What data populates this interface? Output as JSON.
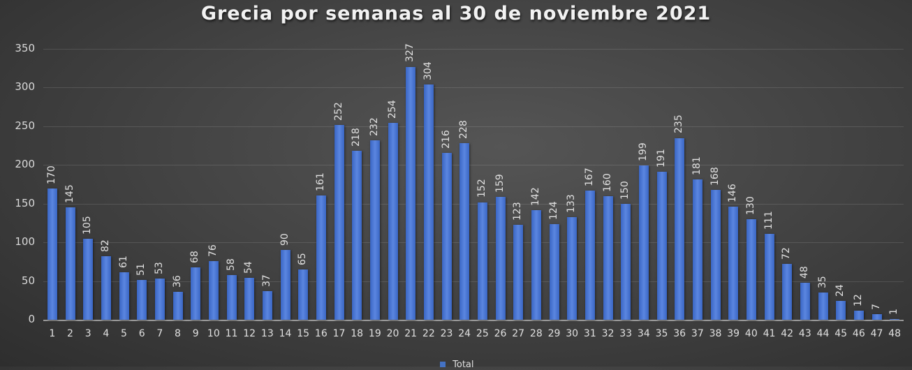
{
  "chart_data": {
    "type": "bar",
    "title": "Grecia por semanas al 30 de noviembre 2021",
    "xlabel": "",
    "ylabel": "",
    "ylim": [
      0,
      350
    ],
    "yticks": [
      0,
      50,
      100,
      150,
      200,
      250,
      300,
      350
    ],
    "grid": true,
    "legend_position": "bottom",
    "categories": [
      "1",
      "2",
      "3",
      "4",
      "5",
      "6",
      "7",
      "8",
      "9",
      "10",
      "11",
      "12",
      "13",
      "14",
      "15",
      "16",
      "17",
      "18",
      "19",
      "20",
      "21",
      "22",
      "23",
      "24",
      "25",
      "26",
      "27",
      "28",
      "29",
      "30",
      "31",
      "32",
      "33",
      "34",
      "35",
      "36",
      "37",
      "38",
      "39",
      "40",
      "41",
      "42",
      "43",
      "44",
      "45",
      "46",
      "47",
      "48"
    ],
    "series": [
      {
        "name": "Total",
        "color": "#4472c4",
        "values": [
          170,
          145,
          105,
          82,
          61,
          51,
          53,
          36,
          68,
          76,
          58,
          54,
          37,
          90,
          65,
          161,
          252,
          218,
          232,
          254,
          327,
          304,
          216,
          228,
          152,
          159,
          123,
          142,
          124,
          133,
          167,
          160,
          150,
          199,
          191,
          235,
          181,
          168,
          146,
          130,
          111,
          72,
          48,
          35,
          24,
          12,
          7,
          1
        ]
      }
    ]
  },
  "legend": {
    "label": "Total"
  }
}
